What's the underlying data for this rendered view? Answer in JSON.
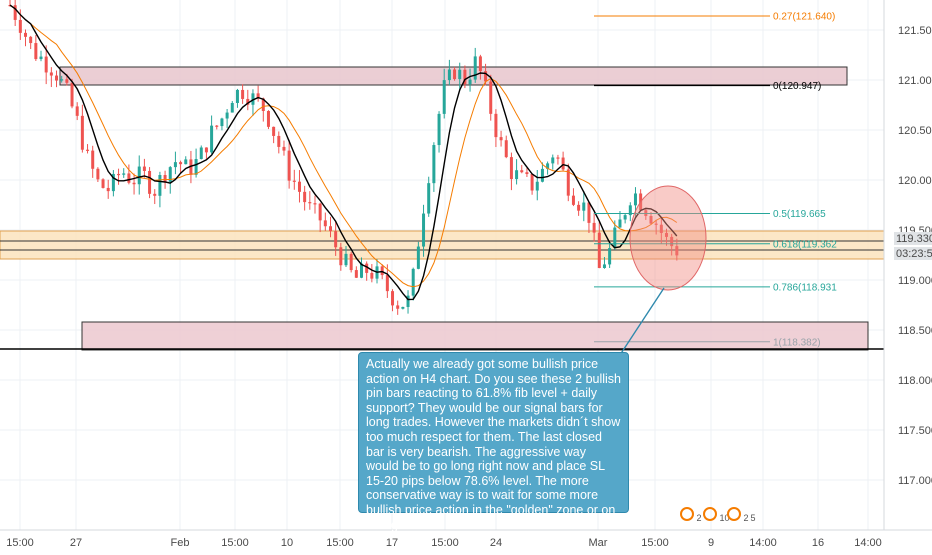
{
  "chart_data": {
    "type": "candlestick",
    "title": "",
    "xlabel": "",
    "ylabel": "",
    "ylim": [
      116.4,
      121.9
    ],
    "x_ticks": [
      "15:00",
      "27",
      "Feb",
      "15:00",
      "10",
      "15:00",
      "17",
      "15:00",
      "24",
      "Mar",
      "15:00",
      "9",
      "14:00",
      "16",
      "14:00"
    ],
    "y_ticks": [
      "121.500",
      "121.000",
      "120.500",
      "120.000",
      "119.500",
      "119.000",
      "118.500",
      "118.000",
      "117.500",
      "117.000"
    ],
    "colors": {
      "up": "#26a69a",
      "down": "#ef5350",
      "ma_fast": "#000000",
      "ma_slow": "#f57c00",
      "fib": "#26a69a",
      "fib_top": "#f57c00",
      "zone_resistance": "#e8b4bd",
      "zone_support": "#f8d9a8",
      "note_bg": "#55a7c9"
    },
    "candles_close_path": [
      [
        0,
        121.75
      ],
      [
        1,
        121.55
      ],
      [
        2,
        121.3
      ],
      [
        3,
        121.2
      ],
      [
        4,
        121.1
      ],
      [
        5,
        120.9
      ],
      [
        6,
        120.6
      ],
      [
        7,
        120.2
      ],
      [
        8,
        119.95
      ],
      [
        9,
        119.9
      ],
      [
        10,
        120.1
      ],
      [
        11,
        120.0
      ],
      [
        12,
        120.05
      ],
      [
        13,
        119.9
      ],
      [
        14,
        120.1
      ],
      [
        15,
        120.2
      ],
      [
        16,
        120.1
      ],
      [
        17,
        120.2
      ],
      [
        18,
        120.45
      ],
      [
        19,
        120.6
      ],
      [
        20,
        120.85
      ],
      [
        21,
        120.9
      ],
      [
        22,
        120.8
      ],
      [
        23,
        120.7
      ],
      [
        24,
        120.4
      ],
      [
        25,
        120.1
      ],
      [
        26,
        119.9
      ],
      [
        27,
        119.7
      ],
      [
        28,
        119.6
      ],
      [
        29,
        119.4
      ],
      [
        30,
        119.2
      ],
      [
        31,
        119.0
      ],
      [
        32,
        119.1
      ],
      [
        33,
        119.05
      ],
      [
        34,
        118.9
      ],
      [
        35,
        118.75
      ],
      [
        36,
        118.8
      ],
      [
        37,
        119.6
      ],
      [
        38,
        120.3
      ],
      [
        39,
        120.9
      ],
      [
        40,
        121.1
      ],
      [
        41,
        121.0
      ],
      [
        42,
        121.2
      ],
      [
        43,
        120.8
      ],
      [
        44,
        120.4
      ],
      [
        45,
        120.1
      ],
      [
        46,
        120.0
      ],
      [
        47,
        119.95
      ],
      [
        48,
        120.1
      ],
      [
        49,
        120.3
      ],
      [
        50,
        120.0
      ],
      [
        51,
        119.8
      ],
      [
        52,
        119.7
      ],
      [
        53,
        119.1
      ],
      [
        54,
        119.3
      ],
      [
        55,
        119.6
      ],
      [
        56,
        119.9
      ],
      [
        57,
        119.75
      ],
      [
        58,
        119.6
      ],
      [
        59,
        119.4
      ],
      [
        60,
        119.3
      ]
    ],
    "moving_averages": [
      {
        "name": "",
        "color": "#000000"
      },
      {
        "name": "",
        "color": "#f57c00"
      }
    ],
    "fib_levels": [
      {
        "label": "0.27(121.640)",
        "value": 121.64
      },
      {
        "label": "0(120.947)",
        "value": 120.947
      },
      {
        "label": "0.5(119.665",
        "value": 119.665
      },
      {
        "label": "0.618(119.362",
        "value": 119.362
      },
      {
        "label": "0.786(118.931",
        "value": 118.931
      },
      {
        "label": "1(118.382)",
        "value": 118.382
      }
    ],
    "zones": [
      {
        "kind": "resistance",
        "from": 120.95,
        "to": 121.13
      },
      {
        "kind": "support",
        "from": 119.21,
        "to": 119.49
      },
      {
        "kind": "demand",
        "from": 118.3,
        "to": 118.58
      }
    ],
    "horizontal_lines": [
      119.39,
      119.3,
      118.31
    ],
    "price_label": "119.330",
    "countdown_label": "03:23:56"
  },
  "annotation": {
    "text": "Actually we already got some bullish price action on H4 chart. Do you see these 2 bullish pin bars reacting to 61.8% fib level + daily support? They would be our signal bars for long trades. However the markets didn´t show too much respect for them. The last closed bar is very bearish. The aggressive way would be to go long right now and place SL 15-20 pips below 78.6% level. The more conservative way is to wait for some more bullish price action in the \"golden\" zone or on swing lows."
  },
  "badges": [
    {
      "icon": "event-icon",
      "count": "2"
    },
    {
      "icon": "event-icon",
      "count": "10"
    },
    {
      "icon": "event-icon",
      "count": "2"
    },
    {
      "icon": "event-icon",
      "count": "5"
    }
  ]
}
